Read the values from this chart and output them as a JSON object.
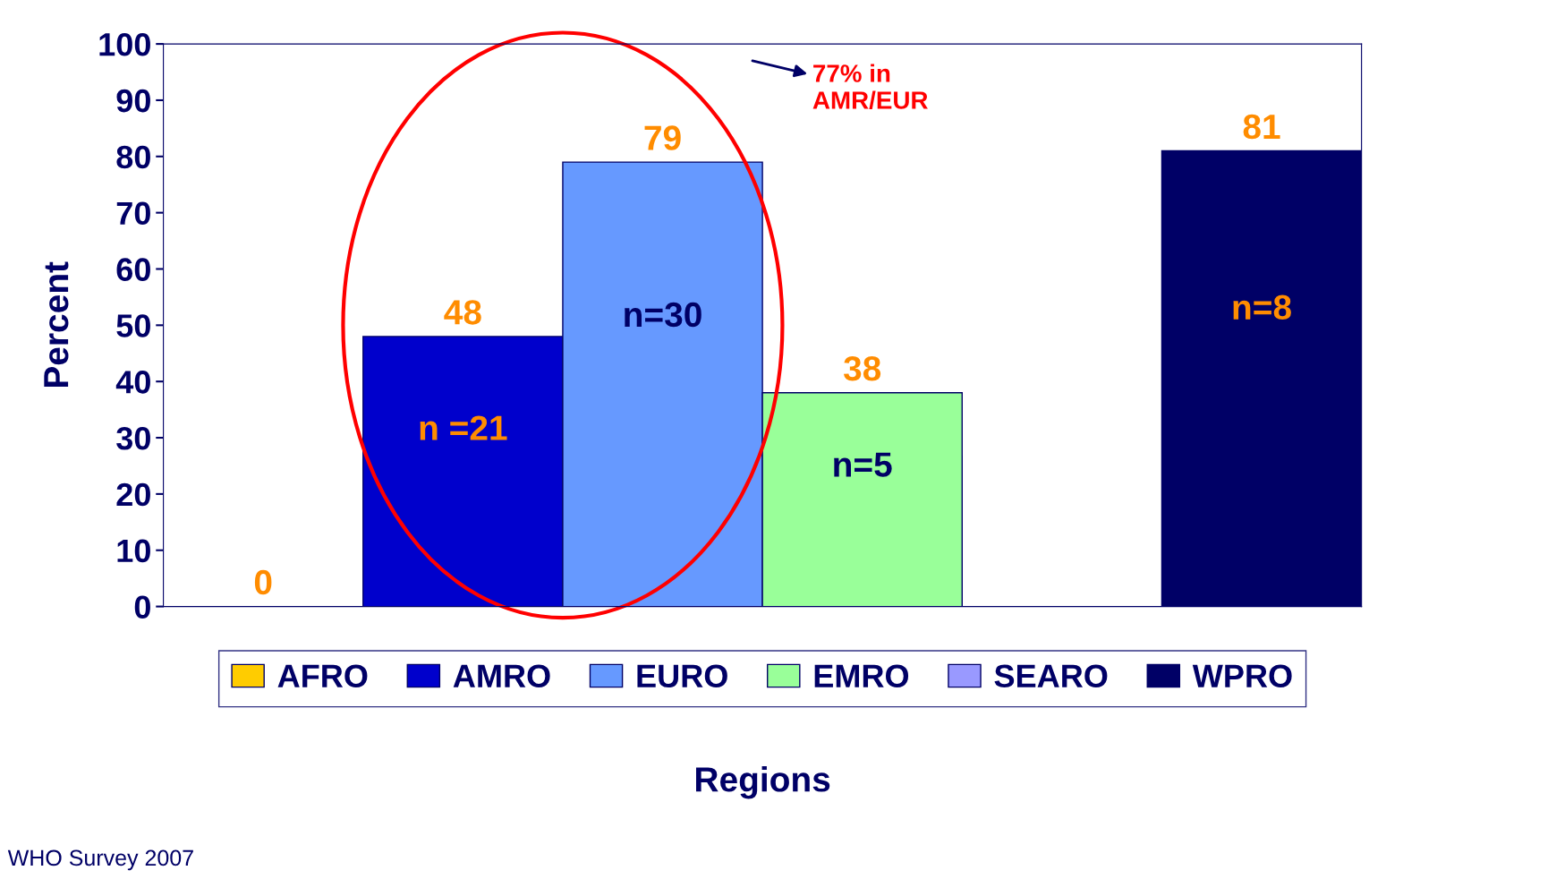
{
  "chart_data": {
    "type": "bar",
    "xlabel": "Regions",
    "ylabel": "Percent",
    "categories": [
      null,
      null,
      null,
      null,
      null,
      null
    ],
    "series": [
      {
        "name": "AFRO",
        "color": "#ffcc00",
        "values": [
          0,
          null,
          null,
          null,
          null,
          null
        ],
        "value_labels": [
          "0",
          null,
          null,
          null,
          null,
          null
        ]
      },
      {
        "name": "AMRO",
        "color": "#0000cc",
        "values": [
          null,
          48,
          null,
          null,
          null,
          null
        ],
        "value_labels": [
          null,
          "48",
          null,
          null,
          null,
          null
        ]
      },
      {
        "name": "EURO",
        "color": "#6699ff",
        "values": [
          null,
          null,
          79,
          null,
          null,
          null
        ],
        "value_labels": [
          null,
          null,
          "79",
          null,
          null,
          null
        ]
      },
      {
        "name": "EMRO",
        "color": "#99ff99",
        "values": [
          null,
          null,
          null,
          38,
          null,
          null
        ],
        "value_labels": [
          null,
          null,
          null,
          "38",
          null,
          null
        ]
      },
      {
        "name": "SEARO",
        "color": "#9999ff",
        "values": [
          null,
          null,
          null,
          null,
          0,
          null
        ],
        "value_labels": [
          null,
          null,
          null,
          null,
          null,
          null
        ]
      },
      {
        "name": "WPRO",
        "color": "#000066",
        "values": [
          null,
          null,
          null,
          null,
          null,
          81
        ],
        "value_labels": [
          null,
          null,
          null,
          null,
          null,
          "81"
        ]
      }
    ],
    "ylim": [
      0,
      100
    ],
    "yticks": [
      0,
      10,
      20,
      30,
      40,
      50,
      60,
      70,
      80,
      90,
      100
    ],
    "grid": false,
    "legend": "bottom",
    "annotations": [
      "77% in\nAMR/EUR",
      "n =21",
      "n=30",
      "n=5",
      "n=8",
      "WHO Survey 2007"
    ]
  }
}
